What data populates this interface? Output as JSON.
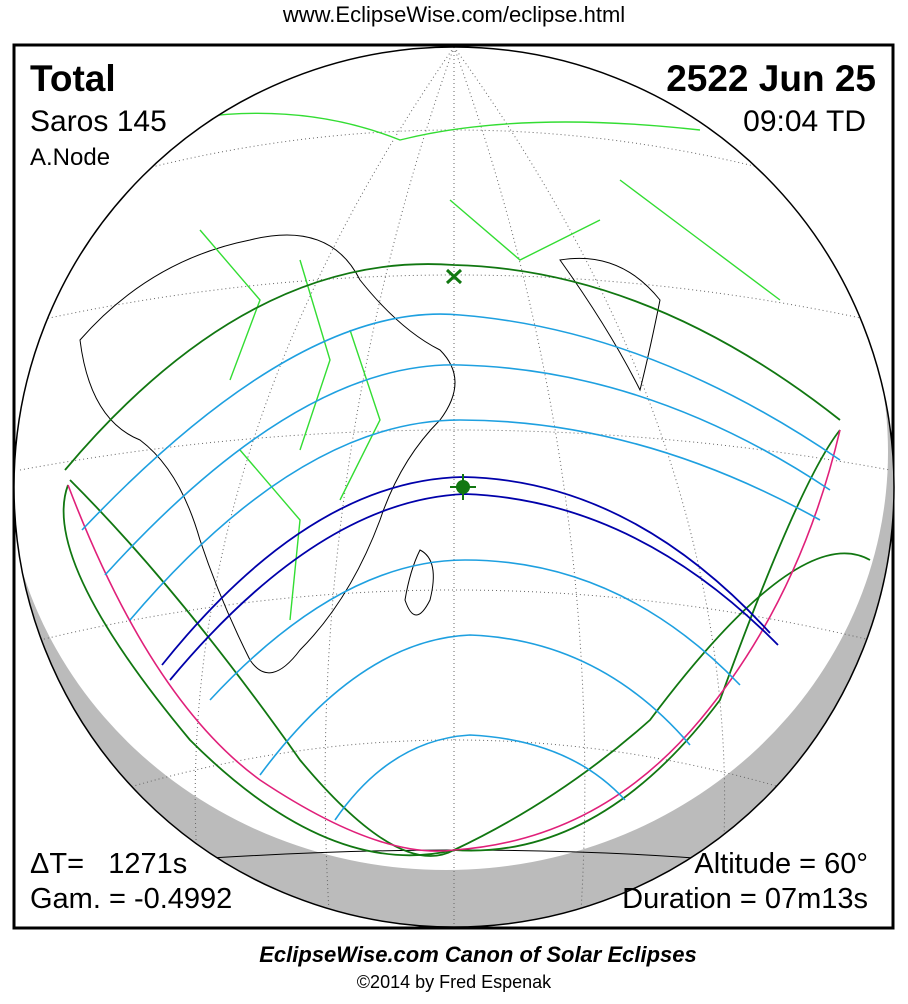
{
  "header": {
    "url": "www.EclipseWise.com/eclipse.html",
    "type": "Total",
    "date": "2522 Jun 25",
    "saros": "Saros 145",
    "time": "09:04 TD",
    "node": "A.Node"
  },
  "stats": {
    "delta_t": "ΔT=   1271s",
    "gamma": "Gam. = -0.4992",
    "altitude": "Altitude = 60°",
    "duration": "Duration = 07m13s"
  },
  "footer": {
    "title": "EclipseWise.com Canon of Solar Eclipses",
    "copyright": "©2014 by Fred Espenak"
  }
}
